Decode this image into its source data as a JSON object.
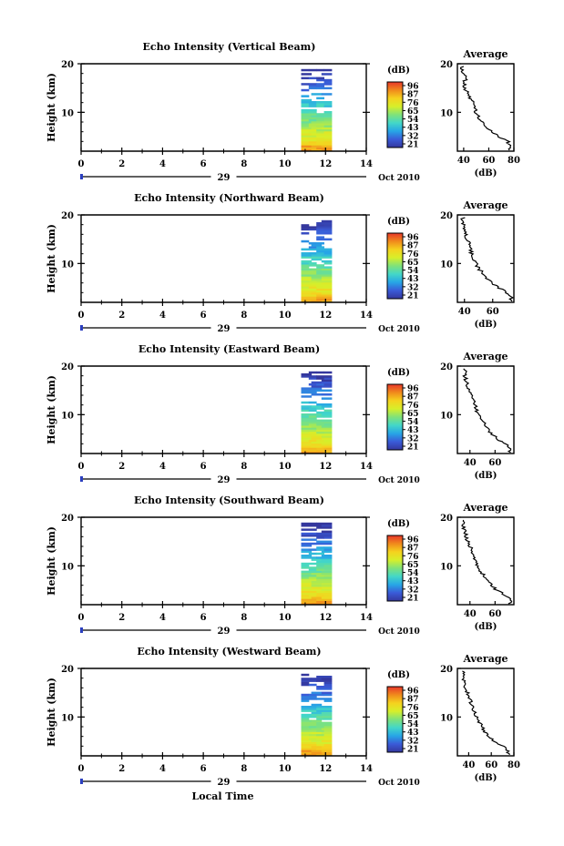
{
  "colorbar": {
    "unit": "(dB)",
    "ticks": [
      "96",
      "87",
      "76",
      "65",
      "54",
      "43",
      "32",
      "21"
    ],
    "stops": [
      "#e8362a",
      "#f08a1c",
      "#f5d21e",
      "#d7ef2a",
      "#7fe27a",
      "#43d7c8",
      "#27a6e6",
      "#3a5bd8",
      "#34379d"
    ]
  },
  "time_axis": {
    "tick_labels": [
      "0",
      "2",
      "4",
      "6",
      "8",
      "10",
      "12",
      "14"
    ],
    "date_day": "29",
    "date_label": "Oct 2010",
    "xlabel": "Local Time"
  },
  "panels": [
    {
      "title": "Echo Intensity (Vertical Beam)",
      "ylabel": "Height (km)",
      "y_tick_labels": [
        "20",
        "10"
      ],
      "avg_title": "Average",
      "avg_x_tick_labels": [
        "40",
        "60",
        "80"
      ],
      "avg_xlabel": "(dB)"
    },
    {
      "title": "Echo Intensity (Northward Beam)",
      "ylabel": "Height (km)",
      "y_tick_labels": [
        "20",
        "10"
      ],
      "avg_title": "Average",
      "avg_x_tick_labels": [
        "40",
        "60"
      ],
      "avg_xlabel": "(dB)"
    },
    {
      "title": "Echo Intensity (Eastward Beam)",
      "ylabel": "Height (km)",
      "y_tick_labels": [
        "20",
        "10"
      ],
      "avg_title": "Average",
      "avg_x_tick_labels": [
        "40",
        "60"
      ],
      "avg_xlabel": "(dB)"
    },
    {
      "title": "Echo Intensity (Southward Beam)",
      "ylabel": "Height (km)",
      "y_tick_labels": [
        "20",
        "10"
      ],
      "avg_title": "Average",
      "avg_x_tick_labels": [
        "40",
        "60"
      ],
      "avg_xlabel": "(dB)"
    },
    {
      "title": "Echo Intensity (Westward Beam)",
      "ylabel": "Height (km)",
      "y_tick_labels": [
        "20",
        "10"
      ],
      "avg_title": "Average",
      "avg_x_tick_labels": [
        "40",
        "60",
        "80"
      ],
      "avg_xlabel": "(dB)"
    }
  ],
  "chart_data": [
    {
      "type": "heatmap",
      "title": "Echo Intensity (Vertical Beam)",
      "xlabel": "",
      "ylabel": "Height (km)",
      "xlim": [
        0,
        14
      ],
      "ylim": [
        2,
        20
      ],
      "data_time_range": [
        10.8,
        12.3
      ],
      "colorbar_range": [
        21,
        96
      ],
      "avg_profile": {
        "title": "Average",
        "xlabel": "(dB)",
        "xlim": [
          35,
          80
        ],
        "height": [
          3,
          4,
          5,
          6,
          7,
          8,
          9,
          10,
          11,
          12,
          13,
          14,
          15,
          16,
          17,
          18
        ],
        "value": [
          77,
          75,
          68,
          62,
          57,
          55,
          52,
          50,
          48,
          47,
          45,
          43,
          41,
          40,
          42,
          39
        ]
      }
    },
    {
      "type": "heatmap",
      "title": "Echo Intensity (Northward Beam)",
      "xlabel": "",
      "ylabel": "Height (km)",
      "xlim": [
        0,
        14
      ],
      "ylim": [
        2,
        20
      ],
      "data_time_range": [
        10.8,
        12.3
      ],
      "colorbar_range": [
        21,
        96
      ],
      "avg_profile": {
        "title": "Average",
        "xlabel": "(dB)",
        "xlim": [
          35,
          75
        ],
        "height": [
          3,
          4,
          5,
          6,
          7,
          8,
          9,
          10,
          11,
          12,
          13,
          14,
          15,
          16,
          17,
          18
        ],
        "value": [
          73,
          70,
          64,
          60,
          56,
          53,
          50,
          48,
          46,
          45,
          44,
          43,
          42,
          41,
          40,
          39
        ]
      }
    },
    {
      "type": "heatmap",
      "title": "Echo Intensity (Eastward Beam)",
      "xlabel": "",
      "ylabel": "Height (km)",
      "xlim": [
        0,
        14
      ],
      "ylim": [
        2,
        20
      ],
      "data_time_range": [
        10.8,
        12.3
      ],
      "colorbar_range": [
        21,
        96
      ],
      "avg_profile": {
        "title": "Average",
        "xlabel": "(dB)",
        "xlim": [
          30,
          75
        ],
        "height": [
          3,
          4,
          5,
          6,
          7,
          8,
          9,
          10,
          11,
          12,
          13,
          14,
          15,
          16,
          17,
          18
        ],
        "value": [
          72,
          68,
          62,
          58,
          54,
          52,
          49,
          47,
          45,
          44,
          43,
          41,
          39,
          38,
          37,
          36
        ]
      }
    },
    {
      "type": "heatmap",
      "title": "Echo Intensity (Southward Beam)",
      "xlabel": "",
      "ylabel": "Height (km)",
      "xlim": [
        0,
        14
      ],
      "ylim": [
        2,
        20
      ],
      "data_time_range": [
        10.8,
        12.3
      ],
      "colorbar_range": [
        21,
        96
      ],
      "avg_profile": {
        "title": "Average",
        "xlabel": "(dB)",
        "xlim": [
          30,
          75
        ],
        "height": [
          3,
          4,
          5,
          6,
          7,
          8,
          9,
          10,
          11,
          12,
          13,
          14,
          15,
          16,
          17,
          18
        ],
        "value": [
          72,
          68,
          61,
          57,
          53,
          51,
          48,
          46,
          45,
          43,
          42,
          40,
          38,
          37,
          36,
          35
        ]
      }
    },
    {
      "type": "heatmap",
      "title": "Echo Intensity (Westward Beam)",
      "xlabel": "Local Time",
      "ylabel": "Height (km)",
      "xlim": [
        0,
        14
      ],
      "ylim": [
        2,
        20
      ],
      "data_time_range": [
        10.8,
        12.3
      ],
      "colorbar_range": [
        21,
        96
      ],
      "avg_profile": {
        "title": "Average",
        "xlabel": "(dB)",
        "xlim": [
          30,
          80
        ],
        "height": [
          3,
          4,
          5,
          6,
          7,
          8,
          9,
          10,
          11,
          12,
          13,
          14,
          15,
          16,
          17,
          18
        ],
        "value": [
          75,
          70,
          63,
          58,
          54,
          52,
          49,
          47,
          45,
          44,
          42,
          41,
          39,
          37,
          36,
          35
        ]
      }
    }
  ]
}
